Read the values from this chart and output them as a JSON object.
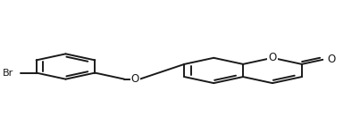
{
  "background_color": "#ffffff",
  "line_color": "#1a1a1a",
  "line_width": 1.4,
  "dbo": 0.018,
  "shorten": 0.013,
  "figsize": [
    4.03,
    1.49
  ],
  "dpi": 100,
  "br_label": "Br",
  "o_label": "O",
  "o2_label": "O",
  "o3_label": "O"
}
